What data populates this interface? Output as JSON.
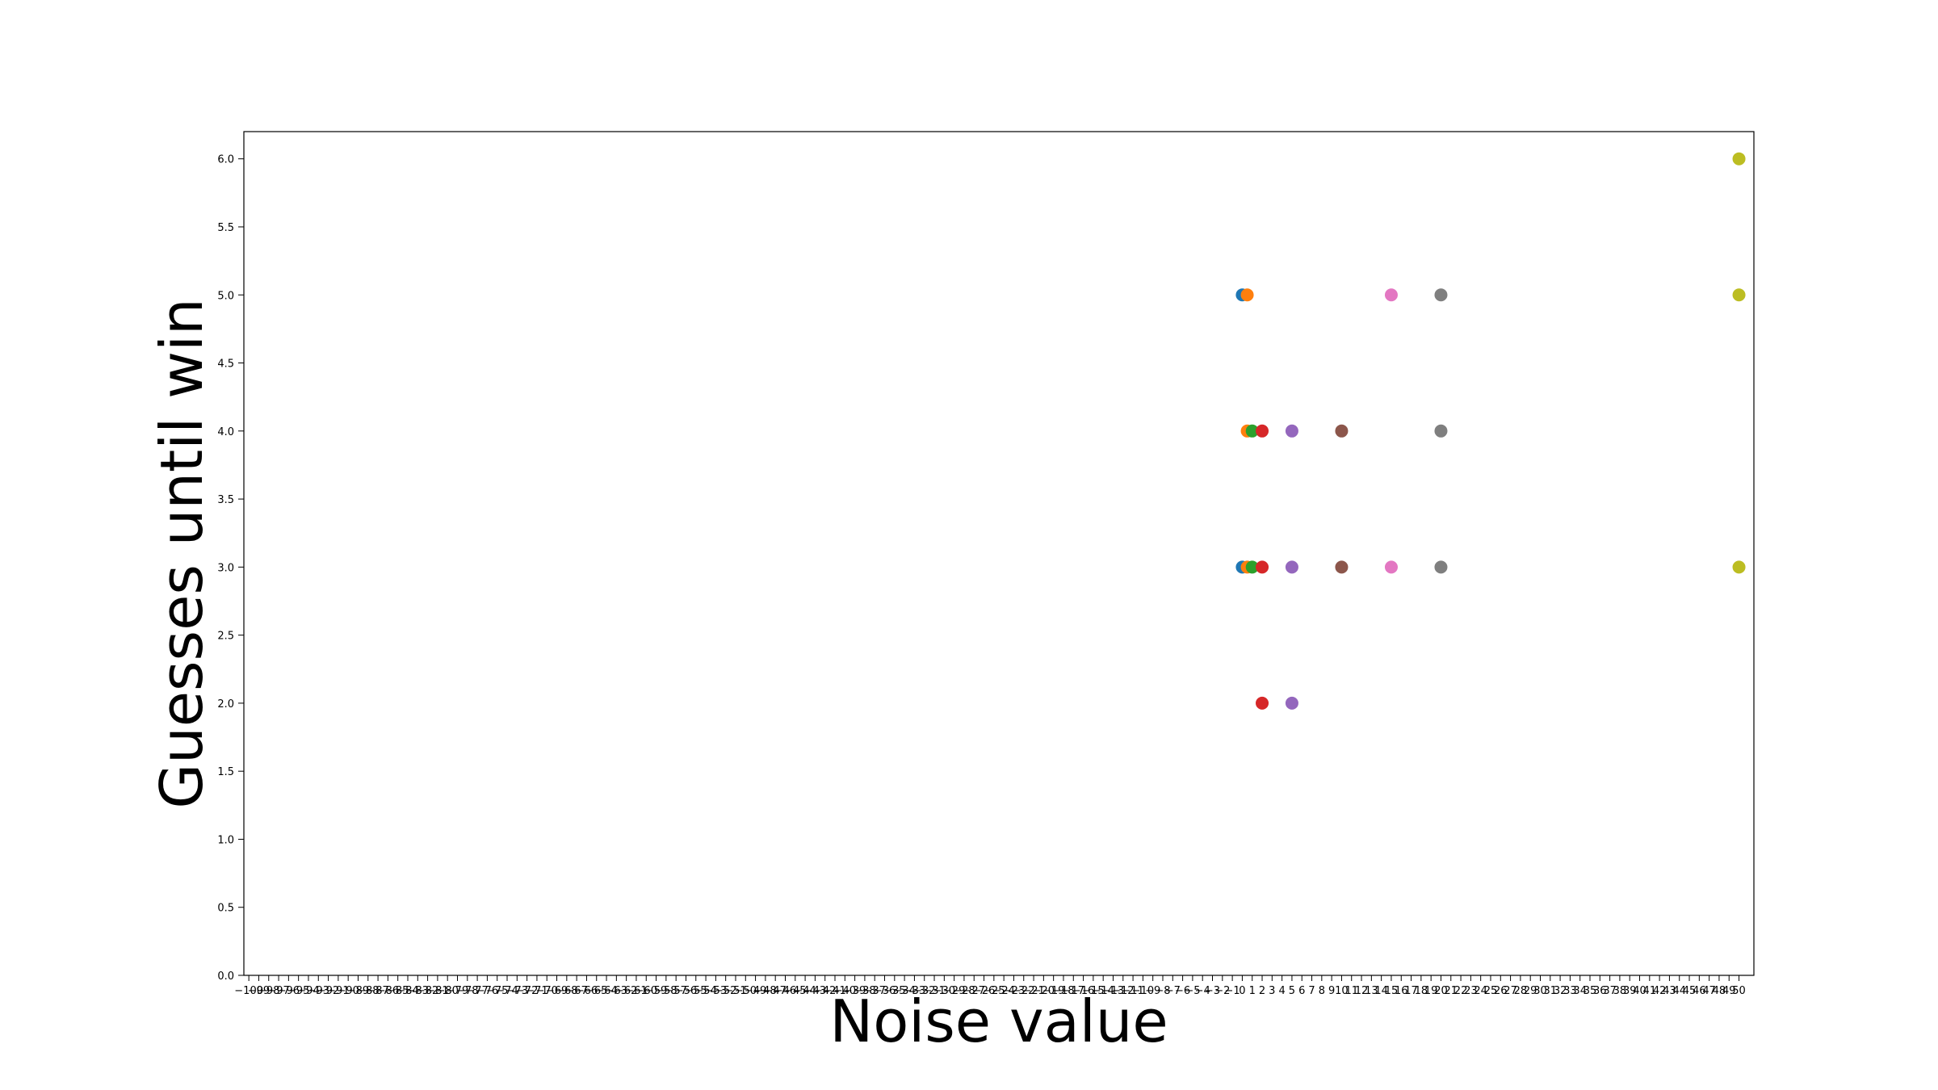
{
  "chart_data": {
    "type": "scatter",
    "xlabel": "Noise value",
    "ylabel": "Guesses until win",
    "title": "",
    "grid": false,
    "legend": "none",
    "xlim": [
      -100,
      50
    ],
    "ylim": [
      0,
      6.2
    ],
    "yticks": [
      "0.0",
      "0.5",
      "1.0",
      "1.5",
      "2.0",
      "2.5",
      "3.0",
      "3.5",
      "4.0",
      "4.5",
      "5.0",
      "5.5",
      "6.0"
    ],
    "series": [
      {
        "color": "#1f77b4",
        "x": [
          0,
          0
        ],
        "y": [
          5,
          3
        ]
      },
      {
        "color": "#ff7f0e",
        "x": [
          0.5,
          0.5,
          0.5
        ],
        "y": [
          5,
          4,
          3
        ]
      },
      {
        "color": "#2ca02c",
        "x": [
          1,
          1
        ],
        "y": [
          4,
          3
        ]
      },
      {
        "color": "#d62728",
        "x": [
          2,
          2,
          2
        ],
        "y": [
          4,
          3,
          2
        ]
      },
      {
        "color": "#9467bd",
        "x": [
          5,
          5,
          5
        ],
        "y": [
          4,
          3,
          2
        ]
      },
      {
        "color": "#8c564b",
        "x": [
          10,
          10
        ],
        "y": [
          4,
          3
        ]
      },
      {
        "color": "#e377c2",
        "x": [
          15,
          15
        ],
        "y": [
          5,
          3
        ]
      },
      {
        "color": "#7f7f7f",
        "x": [
          20,
          20,
          20
        ],
        "y": [
          5,
          4,
          3
        ]
      },
      {
        "color": "#bcbd22",
        "x": [
          50,
          50,
          50
        ],
        "y": [
          6,
          5,
          3
        ]
      }
    ]
  }
}
